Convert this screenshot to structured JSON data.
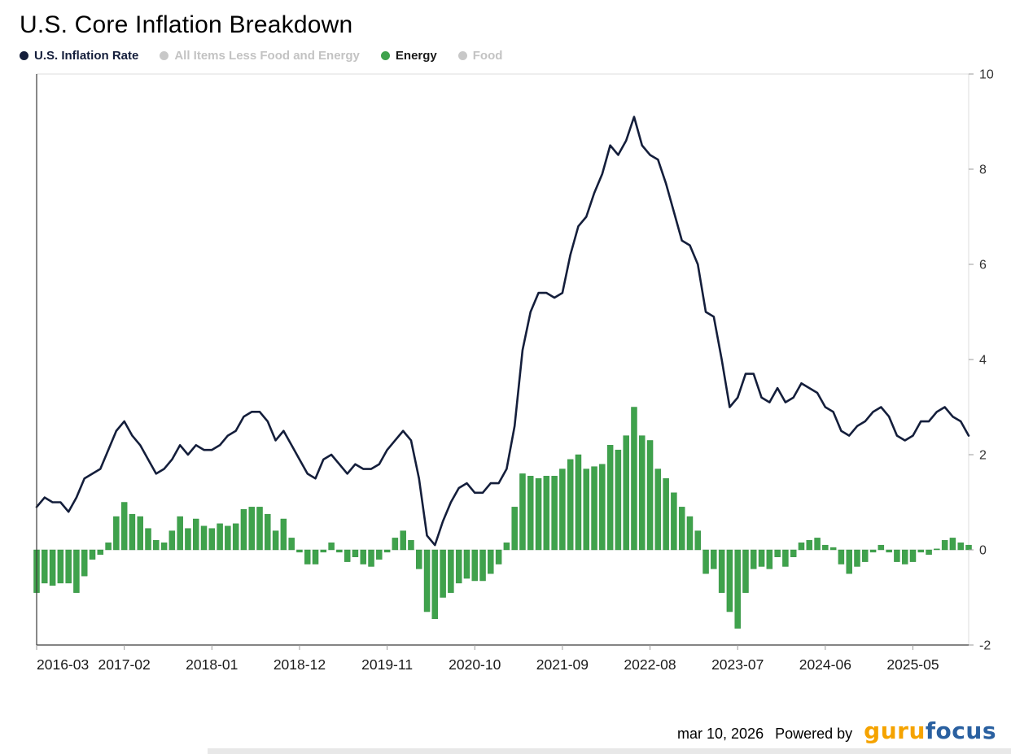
{
  "page": {
    "title": "U.S. Core Inflation Breakdown"
  },
  "legend": {
    "items": [
      {
        "label": "U.S. Inflation Rate",
        "color": "#141e3b",
        "active": true
      },
      {
        "label": "All Items Less Food and Energy",
        "color": "#c8c8c8",
        "active": false
      },
      {
        "label": "Energy",
        "color": "#3fa24c",
        "active": true
      },
      {
        "label": "Food",
        "color": "#c8c8c8",
        "active": false
      }
    ]
  },
  "footer": {
    "date": "mar 10, 2026",
    "powered_by": "Powered by",
    "logo": {
      "part1": "guru",
      "part2": "focus",
      "color1": "#f5a300",
      "color2": "#2a60a0"
    }
  },
  "chart_data": {
    "type": "line+bar",
    "title": "U.S. Core Inflation Breakdown",
    "xlabel": "",
    "ylabel": "",
    "ylim": [
      -2,
      10
    ],
    "y_ticks": [
      -2,
      0,
      2,
      4,
      6,
      8,
      10
    ],
    "grid": false,
    "legend_position": "top",
    "x": [
      "2016-03",
      "2016-04",
      "2016-05",
      "2016-06",
      "2016-07",
      "2016-08",
      "2016-09",
      "2016-10",
      "2016-11",
      "2016-12",
      "2017-01",
      "2017-02",
      "2017-03",
      "2017-04",
      "2017-05",
      "2017-06",
      "2017-07",
      "2017-08",
      "2017-09",
      "2017-10",
      "2017-11",
      "2017-12",
      "2018-01",
      "2018-02",
      "2018-03",
      "2018-04",
      "2018-05",
      "2018-06",
      "2018-07",
      "2018-08",
      "2018-09",
      "2018-10",
      "2018-11",
      "2018-12",
      "2019-01",
      "2019-02",
      "2019-03",
      "2019-04",
      "2019-05",
      "2019-06",
      "2019-07",
      "2019-08",
      "2019-09",
      "2019-10",
      "2019-11",
      "2019-12",
      "2020-01",
      "2020-02",
      "2020-03",
      "2020-04",
      "2020-05",
      "2020-06",
      "2020-07",
      "2020-08",
      "2020-09",
      "2020-10",
      "2020-11",
      "2020-12",
      "2021-01",
      "2021-02",
      "2021-03",
      "2021-04",
      "2021-05",
      "2021-06",
      "2021-07",
      "2021-08",
      "2021-09",
      "2021-10",
      "2021-11",
      "2021-12",
      "2022-01",
      "2022-02",
      "2022-03",
      "2022-04",
      "2022-05",
      "2022-06",
      "2022-07",
      "2022-08",
      "2022-09",
      "2022-10",
      "2022-11",
      "2022-12",
      "2023-01",
      "2023-02",
      "2023-03",
      "2023-04",
      "2023-05",
      "2023-06",
      "2023-07",
      "2023-08",
      "2023-09",
      "2023-10",
      "2023-11",
      "2023-12",
      "2024-01",
      "2024-02",
      "2024-03",
      "2024-04",
      "2024-05",
      "2024-06",
      "2024-07",
      "2024-08",
      "2024-09",
      "2024-10",
      "2024-11",
      "2024-12",
      "2025-01",
      "2025-02",
      "2025-03",
      "2025-04",
      "2025-05",
      "2025-06",
      "2025-07",
      "2025-08",
      "2025-09",
      "2025-10",
      "2025-11",
      "2025-12"
    ],
    "x_tick_labels": [
      "2016-03",
      "2017-02",
      "2018-01",
      "2018-12",
      "2019-11",
      "2020-10",
      "2021-09",
      "2022-08",
      "2023-07",
      "2024-06",
      "2025-05"
    ],
    "x_tick_indices": [
      0,
      11,
      22,
      33,
      44,
      55,
      66,
      77,
      88,
      99,
      110
    ],
    "series": [
      {
        "name": "U.S. Inflation Rate",
        "type": "line",
        "color": "#141e3b",
        "values": [
          0.9,
          1.1,
          1.0,
          1.0,
          0.8,
          1.1,
          1.5,
          1.6,
          1.7,
          2.1,
          2.5,
          2.7,
          2.4,
          2.2,
          1.9,
          1.6,
          1.7,
          1.9,
          2.2,
          2.0,
          2.2,
          2.1,
          2.1,
          2.2,
          2.4,
          2.5,
          2.8,
          2.9,
          2.9,
          2.7,
          2.3,
          2.5,
          2.2,
          1.9,
          1.6,
          1.5,
          1.9,
          2.0,
          1.8,
          1.6,
          1.8,
          1.7,
          1.7,
          1.8,
          2.1,
          2.3,
          2.5,
          2.3,
          1.5,
          0.3,
          0.1,
          0.6,
          1.0,
          1.3,
          1.4,
          1.2,
          1.2,
          1.4,
          1.4,
          1.7,
          2.6,
          4.2,
          5.0,
          5.4,
          5.4,
          5.3,
          5.4,
          6.2,
          6.8,
          7.0,
          7.5,
          7.9,
          8.5,
          8.3,
          8.6,
          9.1,
          8.5,
          8.3,
          8.2,
          7.7,
          7.1,
          6.5,
          6.4,
          6.0,
          5.0,
          4.9,
          4.0,
          3.0,
          3.2,
          3.7,
          3.7,
          3.2,
          3.1,
          3.4,
          3.1,
          3.2,
          3.5,
          3.4,
          3.3,
          3.0,
          2.9,
          2.5,
          2.4,
          2.6,
          2.7,
          2.9,
          3.0,
          2.8,
          2.4,
          2.3,
          2.4,
          2.7,
          2.7,
          2.9,
          3.0,
          2.8,
          2.7,
          2.4
        ]
      },
      {
        "name": "Energy",
        "type": "bar",
        "color": "#3fa24c",
        "values": [
          -0.9,
          -0.7,
          -0.75,
          -0.7,
          -0.7,
          -0.9,
          -0.55,
          -0.2,
          -0.1,
          0.15,
          0.7,
          1.0,
          0.75,
          0.7,
          0.45,
          0.2,
          0.15,
          0.4,
          0.7,
          0.45,
          0.65,
          0.5,
          0.45,
          0.55,
          0.5,
          0.55,
          0.85,
          0.9,
          0.9,
          0.75,
          0.4,
          0.65,
          0.25,
          -0.05,
          -0.3,
          -0.3,
          -0.05,
          0.15,
          -0.05,
          -0.25,
          -0.15,
          -0.3,
          -0.35,
          -0.2,
          -0.05,
          0.25,
          0.4,
          0.2,
          -0.4,
          -1.3,
          -1.45,
          -1.0,
          -0.9,
          -0.7,
          -0.6,
          -0.65,
          -0.65,
          -0.5,
          -0.3,
          0.15,
          0.9,
          1.6,
          1.55,
          1.5,
          1.55,
          1.55,
          1.7,
          1.9,
          2.0,
          1.7,
          1.75,
          1.8,
          2.2,
          2.1,
          2.4,
          3.0,
          2.4,
          2.3,
          1.7,
          1.5,
          1.2,
          0.9,
          0.7,
          0.4,
          -0.5,
          -0.4,
          -0.9,
          -1.3,
          -1.65,
          -0.9,
          -0.4,
          -0.35,
          -0.4,
          -0.15,
          -0.35,
          -0.15,
          0.15,
          0.2,
          0.25,
          0.1,
          0.05,
          -0.3,
          -0.5,
          -0.35,
          -0.25,
          -0.05,
          0.1,
          -0.05,
          -0.25,
          -0.3,
          -0.25,
          -0.05,
          -0.1,
          0.02,
          0.2,
          0.25,
          0.15,
          0.1
        ]
      }
    ],
    "inactive_series": [
      "All Items Less Food and Energy",
      "Food"
    ]
  }
}
